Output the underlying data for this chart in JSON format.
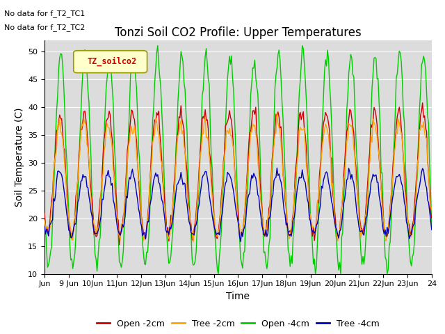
{
  "title": "Tonzi Soil CO2 Profile: Upper Temperatures",
  "ylabel": "Soil Temperature (C)",
  "xlabel": "Time",
  "annotation1": "No data for f_T2_TC1",
  "annotation2": "No data for f_T2_TC2",
  "legend_label": "TZ_soilco2",
  "ylim": [
    10,
    52
  ],
  "yticks": [
    10,
    15,
    20,
    25,
    30,
    35,
    40,
    45,
    50
  ],
  "x_labels": [
    "Jun",
    "9 Jun",
    "10Jun",
    "11Jun",
    "12Jun",
    "13Jun",
    "14Jun",
    "15Jun",
    "16Jun",
    "17Jun",
    "18Jun",
    "19Jun",
    "20Jun",
    "21Jun",
    "22Jun",
    "23Jun",
    "24"
  ],
  "series_labels": [
    "Open -2cm",
    "Tree -2cm",
    "Open -4cm",
    "Tree -4cm"
  ],
  "series_colors": [
    "#cc0000",
    "#ffa500",
    "#00cc00",
    "#0000bb"
  ],
  "background_color": "#dcdcdc",
  "title_fontsize": 12,
  "axis_fontsize": 10,
  "tick_fontsize": 8,
  "legend_box_color": "#ffffcc",
  "legend_box_edge": "#999900"
}
